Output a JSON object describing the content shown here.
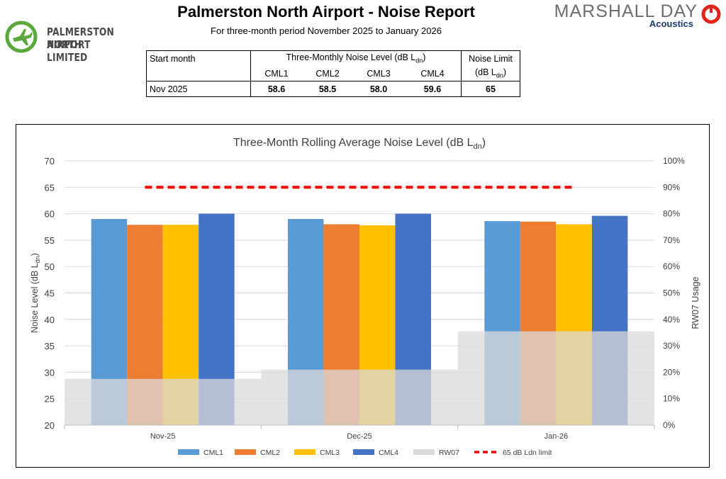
{
  "header": {
    "title": "Palmerston North Airport - Noise Report",
    "subtitle": "For three-month period November 2025 to January 2026"
  },
  "logos": {
    "airport_line1": "PALMERSTON NORTH",
    "airport_line2": "AIRPORT LIMITED",
    "consultant_name": "MARSHALL DAY",
    "consultant_sub": "Acoustics"
  },
  "table": {
    "col_start": "Start month",
    "col_group": "Three-Monthly Noise Level (dB L",
    "col_group_sub": "dn",
    "col_limit_1": "Noise Limit",
    "col_limit_2": "(dB L",
    "col_limit_sub": "dn",
    "sub_headers": [
      "CML1",
      "CML2",
      "CML3",
      "CML4"
    ],
    "row": {
      "month": "Nov 2025",
      "values": [
        "58.6",
        "58.5",
        "58.0",
        "59.6"
      ],
      "limit": "65"
    }
  },
  "chart_data": {
    "type": "bar",
    "title": "Three-Month Rolling Average Noise Level (dB L",
    "title_sub": "dn",
    "categories": [
      "Nov-25",
      "Dec-25",
      "Jan-26"
    ],
    "series": [
      {
        "name": "CML1",
        "color": "#5b9bd5",
        "values": [
          59.0,
          59.0,
          58.6
        ]
      },
      {
        "name": "CML2",
        "color": "#ed7d31",
        "values": [
          57.9,
          58.0,
          58.5
        ]
      },
      {
        "name": "CML3",
        "color": "#ffc000",
        "values": [
          57.9,
          57.8,
          58.0
        ]
      },
      {
        "name": "CML4",
        "color": "#4472c4",
        "values": [
          60.0,
          60.0,
          59.6
        ]
      }
    ],
    "secondary_series": {
      "name": "RW07",
      "color": "#d9d9d9",
      "axis": "y2",
      "values": [
        0.175,
        0.21,
        0.355
      ]
    },
    "limit_line": {
      "name": "65 dB Ldn limit",
      "color": "#ff0000",
      "value": 65
    },
    "ylabel": "Noise Level (dB L",
    "ylabel_sub": "dn",
    "y2label": "RW07 Usage",
    "ylim": [
      20,
      70
    ],
    "y_ticks": [
      "20",
      "25",
      "30",
      "35",
      "40",
      "45",
      "50",
      "55",
      "60",
      "65",
      "70"
    ],
    "y2lim": [
      0,
      1
    ],
    "y2_ticks": [
      "0%",
      "10%",
      "20%",
      "30%",
      "40%",
      "50%",
      "60%",
      "70%",
      "80%",
      "90%",
      "100%"
    ],
    "grid": true,
    "legend": [
      "CML1",
      "CML2",
      "CML3",
      "CML4",
      "RW07",
      "65 dB Ldn limit"
    ],
    "legend_position": "bottom"
  }
}
